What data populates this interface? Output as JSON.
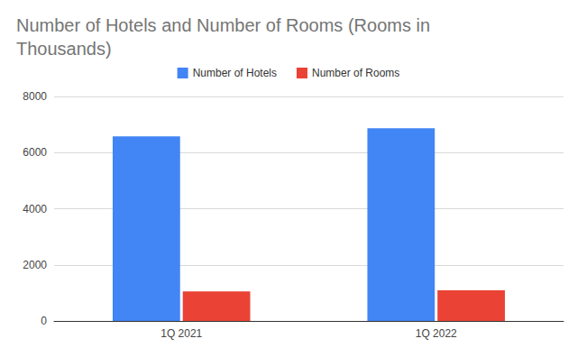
{
  "chart_data": {
    "type": "bar",
    "title": "Number of Hotels and Number of Rooms (Rooms in Thousands)",
    "categories": [
      "1Q 2021",
      "1Q 2022"
    ],
    "series": [
      {
        "name": "Number of Hotels",
        "color": "#4285f4",
        "values": [
          6580,
          6870
        ]
      },
      {
        "name": "Number of Rooms",
        "color": "#ea4335",
        "values": [
          1050,
          1090
        ]
      }
    ],
    "ylim": [
      0,
      8000
    ],
    "yticks": [
      0,
      2000,
      4000,
      6000,
      8000
    ],
    "grid": true,
    "legend": "top"
  }
}
